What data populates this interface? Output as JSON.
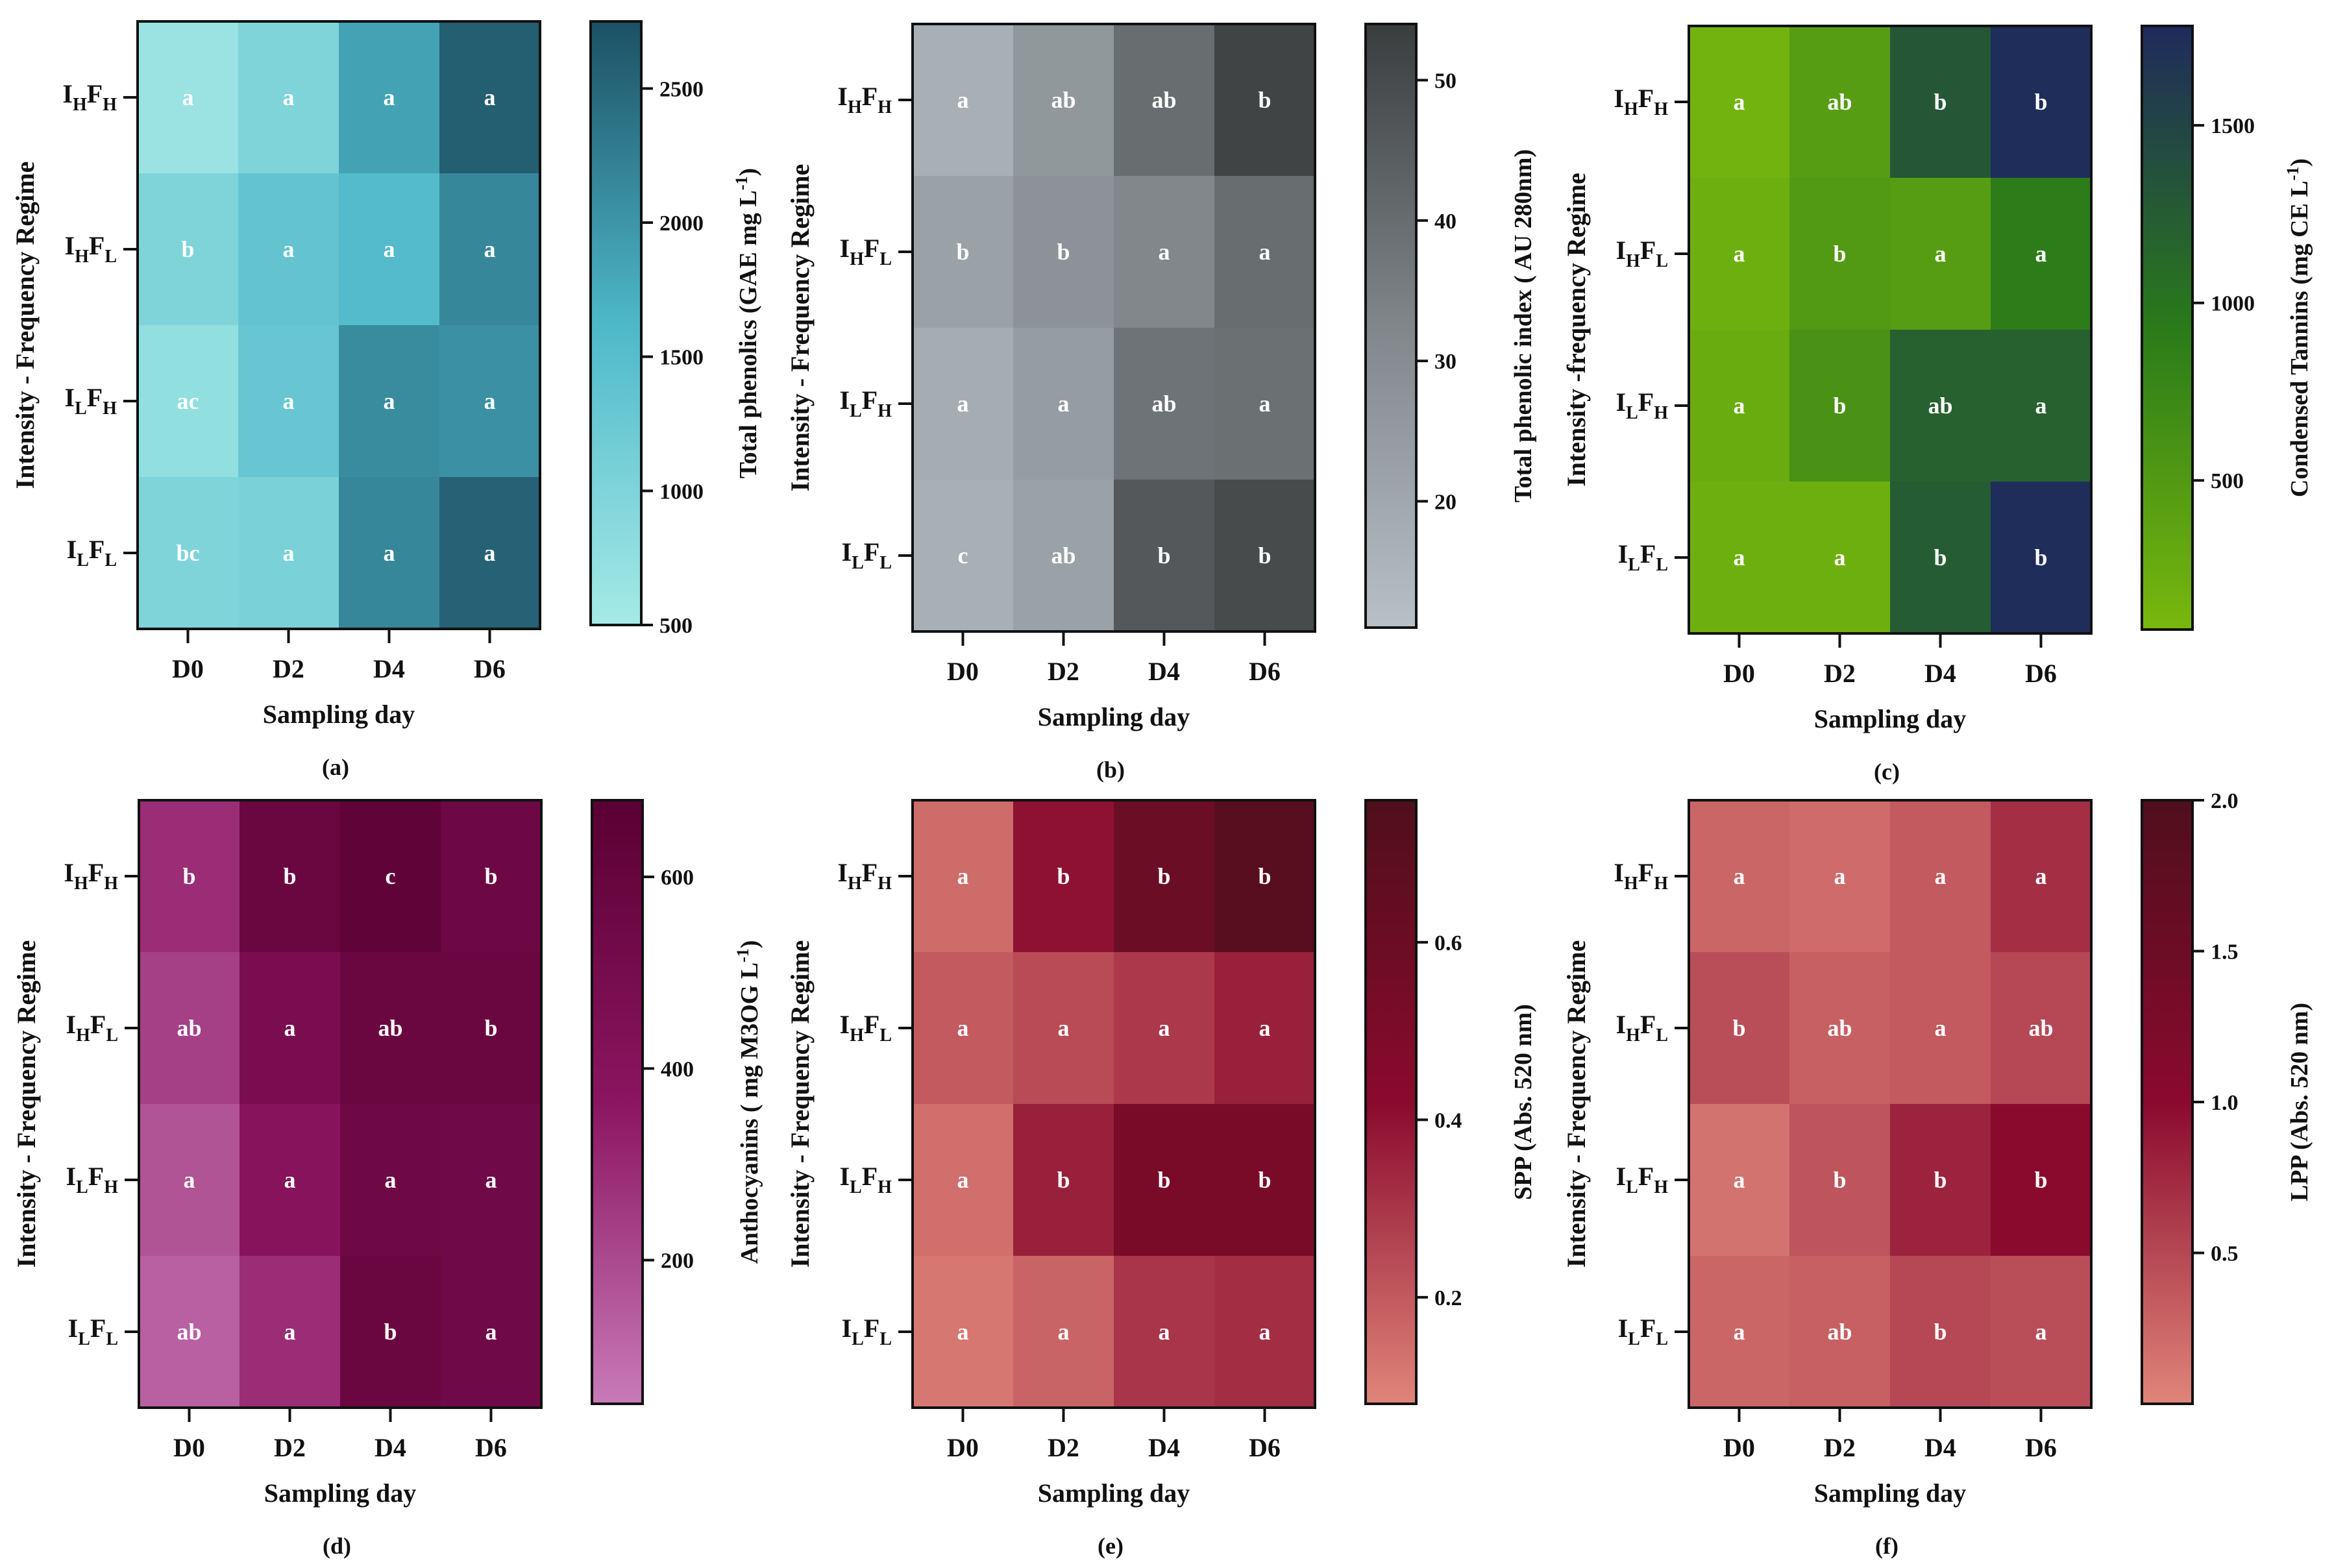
{
  "chart_data": [
    {
      "id": "a",
      "panel_label": "(a)",
      "type": "heatmap",
      "categories": [
        "D0",
        "D2",
        "D4",
        "D6"
      ],
      "rows": [
        {
          "label": "I",
          "s1": "H",
          "f": "F",
          "s2": "H"
        },
        {
          "label": "I",
          "s1": "H",
          "f": "F",
          "s2": "L"
        },
        {
          "label": "I",
          "s1": "L",
          "f": "F",
          "s2": "H"
        },
        {
          "label": "I",
          "s1": "L",
          "f": "F",
          "s2": "L"
        }
      ],
      "values": [
        [
          650,
          1000,
          1850,
          2600
        ],
        [
          1000,
          1350,
          1550,
          2150
        ],
        [
          750,
          1300,
          2100,
          2050
        ],
        [
          1000,
          1050,
          2150,
          2550
        ]
      ],
      "letters": [
        [
          "a",
          "a",
          "a",
          "a"
        ],
        [
          "b",
          "a",
          "a",
          "a"
        ],
        [
          "ac",
          "a",
          "a",
          "a"
        ],
        [
          "bc",
          "a",
          "a",
          "a"
        ]
      ],
      "xlabel": "Sampling day",
      "ylabel": "Intensity - Frequency Regime",
      "colorbar": {
        "title": "Total phenolics (GAE mg L",
        "title_sup": "-1",
        "title_end": ")",
        "min": 500,
        "max": 2750,
        "ticks": [
          500,
          1000,
          1500,
          2000,
          2500
        ],
        "colors": [
          "#a6eae6",
          "#4db8c9",
          "#1d5064"
        ]
      }
    },
    {
      "id": "b",
      "panel_label": "(b)",
      "type": "heatmap",
      "categories": [
        "D0",
        "D2",
        "D4",
        "D6"
      ],
      "rows": [
        {
          "label": "I",
          "s1": "H",
          "f": "F",
          "s2": "H"
        },
        {
          "label": "I",
          "s1": "H",
          "f": "F",
          "s2": "L"
        },
        {
          "label": "I",
          "s1": "L",
          "f": "F",
          "s2": "H"
        },
        {
          "label": "I",
          "s1": "L",
          "f": "F",
          "s2": "L"
        }
      ],
      "values": [
        [
          17,
          26,
          40,
          52
        ],
        [
          22,
          28,
          32,
          40
        ],
        [
          18,
          24,
          38,
          39
        ],
        [
          17,
          22,
          46,
          50
        ]
      ],
      "letters": [
        [
          "a",
          "ab",
          "ab",
          "b"
        ],
        [
          "b",
          "b",
          "a",
          "a"
        ],
        [
          "a",
          "a",
          "ab",
          "a"
        ],
        [
          "c",
          "ab",
          "b",
          "b"
        ]
      ],
      "xlabel": "Sampling day",
      "ylabel": "Intensity - Frequency Regime",
      "colorbar": {
        "title": "Total phenolic index ( AU 280nm)",
        "title_sup": "",
        "title_end": "",
        "min": 11,
        "max": 54,
        "ticks": [
          20,
          30,
          40,
          50
        ],
        "colors": [
          "#b8c0c6",
          "#80868a",
          "#3a3d3e"
        ]
      }
    },
    {
      "id": "c",
      "panel_label": "(c)",
      "type": "heatmap",
      "categories": [
        "D0",
        "D2",
        "D4",
        "D6"
      ],
      "rows": [
        {
          "label": "I",
          "s1": "H",
          "f": "F",
          "s2": "H"
        },
        {
          "label": "I",
          "s1": "H",
          "f": "F",
          "s2": "L"
        },
        {
          "label": "I",
          "s1": "L",
          "f": "F",
          "s2": "H"
        },
        {
          "label": "I",
          "s1": "L",
          "f": "F",
          "s2": "L"
        }
      ],
      "values": [
        [
          150,
          450,
          1300,
          1750
        ],
        [
          200,
          500,
          450,
          900
        ],
        [
          250,
          600,
          1200,
          1200
        ],
        [
          200,
          200,
          1250,
          1750
        ]
      ],
      "letters": [
        [
          "a",
          "ab",
          "b",
          "b"
        ],
        [
          "a",
          "b",
          "a",
          "a"
        ],
        [
          "a",
          "b",
          "ab",
          "a"
        ],
        [
          "a",
          "a",
          "b",
          "b"
        ]
      ],
      "xlabel": "Sampling day",
      "ylabel": "Intensity -frequency Regime",
      "colorbar": {
        "title": "Condensed Tannins (mg CE L",
        "title_sup": "-1",
        "title_end": ")",
        "min": 80,
        "max": 1780,
        "ticks": [
          500,
          1000,
          1500
        ],
        "colors": [
          "#79b80e",
          "#2a7a1a",
          "#1f2a5c"
        ]
      }
    },
    {
      "id": "d",
      "panel_label": "(d)",
      "type": "heatmap",
      "categories": [
        "D0",
        "D2",
        "D4",
        "D6"
      ],
      "rows": [
        {
          "label": "I",
          "s1": "H",
          "f": "F",
          "s2": "H"
        },
        {
          "label": "I",
          "s1": "H",
          "f": "F",
          "s2": "L"
        },
        {
          "label": "I",
          "s1": "L",
          "f": "F",
          "s2": "H"
        },
        {
          "label": "I",
          "s1": "L",
          "f": "F",
          "s2": "L"
        }
      ],
      "values": [
        [
          290,
          580,
          640,
          560
        ],
        [
          230,
          480,
          580,
          580
        ],
        [
          170,
          400,
          550,
          540
        ],
        [
          130,
          290,
          580,
          540
        ]
      ],
      "letters": [
        [
          "b",
          "b",
          "c",
          "b"
        ],
        [
          "ab",
          "a",
          "ab",
          "b"
        ],
        [
          "a",
          "a",
          "a",
          "a"
        ],
        [
          "ab",
          "a",
          "b",
          "a"
        ]
      ],
      "xlabel": "Sampling day",
      "ylabel": "Intensity - Frequency Regime",
      "colorbar": {
        "title": "Anthocyanins ( mg M3OG L",
        "title_sup": "-1",
        "title_end": ")",
        "min": 50,
        "max": 680,
        "ticks": [
          200,
          400,
          600
        ],
        "colors": [
          "#c87ab8",
          "#8b1560",
          "#5a0033"
        ]
      }
    },
    {
      "id": "e",
      "panel_label": "(e)",
      "type": "heatmap",
      "categories": [
        "D0",
        "D2",
        "D4",
        "D6"
      ],
      "rows": [
        {
          "label": "I",
          "s1": "H",
          "f": "F",
          "s2": "H"
        },
        {
          "label": "I",
          "s1": "H",
          "f": "F",
          "s2": "L"
        },
        {
          "label": "I",
          "s1": "L",
          "f": "F",
          "s2": "H"
        },
        {
          "label": "I",
          "s1": "L",
          "f": "F",
          "s2": "L"
        }
      ],
      "values": [
        [
          0.15,
          0.4,
          0.6,
          0.7
        ],
        [
          0.2,
          0.24,
          0.29,
          0.36
        ],
        [
          0.14,
          0.36,
          0.52,
          0.52
        ],
        [
          0.12,
          0.17,
          0.3,
          0.32
        ]
      ],
      "letters": [
        [
          "a",
          "b",
          "b",
          "b"
        ],
        [
          "a",
          "a",
          "a",
          "a"
        ],
        [
          "a",
          "b",
          "b",
          "b"
        ],
        [
          "a",
          "a",
          "a",
          "a"
        ]
      ],
      "xlabel": "Sampling day",
      "ylabel": "Intensity - Frequency Regime",
      "colorbar": {
        "title": "SPP (Abs. 520 nm)",
        "title_sup": "",
        "title_end": "",
        "min": 0.08,
        "max": 0.76,
        "ticks": [
          0.2,
          0.4,
          0.6
        ],
        "colors": [
          "#e0857a",
          "#8a0a2e",
          "#4f0f1c"
        ]
      }
    },
    {
      "id": "f",
      "panel_label": "(f)",
      "type": "heatmap",
      "categories": [
        "D0",
        "D2",
        "D4",
        "D6"
      ],
      "rows": [
        {
          "label": "I",
          "s1": "H",
          "f": "F",
          "s2": "H"
        },
        {
          "label": "I",
          "s1": "H",
          "f": "F",
          "s2": "L"
        },
        {
          "label": "I",
          "s1": "L",
          "f": "F",
          "s2": "H"
        },
        {
          "label": "I",
          "s1": "L",
          "f": "F",
          "s2": "L"
        }
      ],
      "values": [
        [
          0.25,
          0.2,
          0.35,
          0.7
        ],
        [
          0.45,
          0.3,
          0.35,
          0.5
        ],
        [
          0.15,
          0.4,
          0.8,
          1.0
        ],
        [
          0.25,
          0.3,
          0.5,
          0.45
        ]
      ],
      "letters": [
        [
          "a",
          "a",
          "a",
          "a"
        ],
        [
          "b",
          "ab",
          "a",
          "ab"
        ],
        [
          "a",
          "b",
          "b",
          "b"
        ],
        [
          "a",
          "ab",
          "b",
          "a"
        ]
      ],
      "xlabel": "Sampling day",
      "ylabel": "Intensity - Frequency Regime",
      "colorbar": {
        "title": "LPP (Abs. 520 nm)",
        "title_sup": "",
        "title_end": "",
        "min": 0.0,
        "max": 2.0,
        "ticks": [
          0.5,
          1.0,
          1.5,
          2.0
        ],
        "colors": [
          "#e0857a",
          "#8a0a2e",
          "#4f0f1c"
        ]
      }
    }
  ]
}
